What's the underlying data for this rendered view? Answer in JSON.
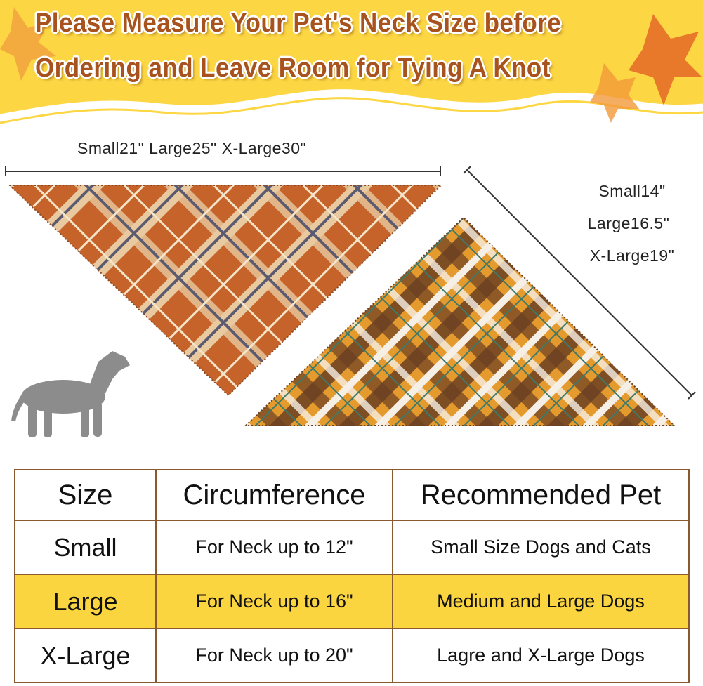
{
  "banner": {
    "line1": "Please Measure Your Pet's Neck Size before",
    "line2": "Ordering and Leave Room for Tying A Knot",
    "bg_color": "#fcd643",
    "text_color": "#a8521d"
  },
  "width_label": "Small21\"  Large25\"  X-Large30\"",
  "side_labels": [
    "Small14\"",
    "Large16.5\"",
    "X-Large19\""
  ],
  "images": {
    "bandana_1": "orange plaid bandana",
    "bandana_2": "brown/yellow plaid bandana",
    "dog": "dog-silhouette-icon"
  },
  "table": {
    "headers": [
      "Size",
      "Circumference",
      "Recommended Pet"
    ],
    "rows": [
      {
        "size": "Small",
        "circumference": "For Neck up to 12\"",
        "pet": "Small Size Dogs and Cats",
        "highlight": false
      },
      {
        "size": "Large",
        "circumference": "For Neck up to 16\"",
        "pet": "Medium and Large Dogs",
        "highlight": true
      },
      {
        "size": "X-Large",
        "circumference": "For Neck up to 20\"",
        "pet": "Lagre and X-Large Dogs",
        "highlight": false
      }
    ],
    "highlight_color": "#fbd53f",
    "border_color": "#8a5a2e"
  }
}
